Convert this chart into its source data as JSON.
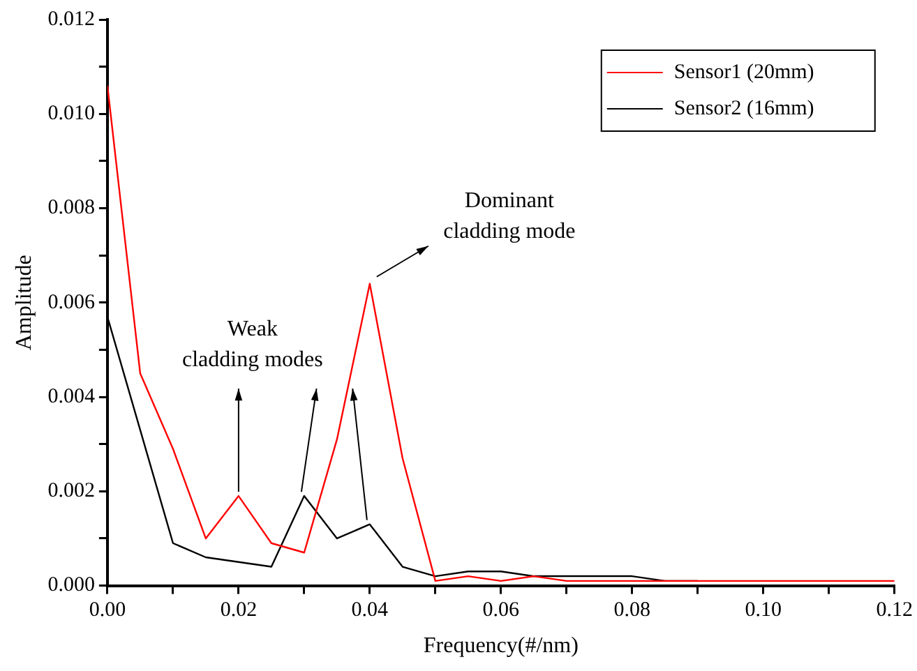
{
  "chart_data": {
    "type": "line",
    "xlabel": "Frequency(#/nm)",
    "ylabel": "Amplitude",
    "x": [
      0,
      0.005,
      0.01,
      0.015,
      0.02,
      0.025,
      0.03,
      0.035,
      0.04,
      0.045,
      0.05,
      0.055,
      0.06,
      0.065,
      0.07,
      0.075,
      0.08,
      0.085,
      0.09,
      0.095,
      0.1,
      0.105,
      0.11,
      0.115,
      0.12
    ],
    "series": [
      {
        "name": "Sensor1 (20mm)",
        "color": "#ff0000",
        "values": [
          0.0106,
          0.0045,
          0.0029,
          0.001,
          0.0019,
          0.0009,
          0.0007,
          0.0031,
          0.0064,
          0.0027,
          0.0001,
          0.0002,
          0.0001,
          0.0002,
          0.0001,
          0.0001,
          0.0001,
          0.0001,
          0.0001,
          0.0001,
          0.0001,
          0.0001,
          0.0001,
          0.0001,
          0.0001
        ]
      },
      {
        "name": "Sensor2 (16mm)",
        "color": "#000000",
        "values": [
          0.0057,
          0.0033,
          0.0009,
          0.0006,
          0.0005,
          0.0004,
          0.0019,
          0.001,
          0.0013,
          0.0004,
          0.0002,
          0.0003,
          0.0003,
          0.0002,
          0.0002,
          0.0002,
          0.0002,
          0.0001,
          0.0001,
          null,
          null,
          null,
          null,
          null,
          null
        ]
      }
    ],
    "xlim": [
      0,
      0.12
    ],
    "xticks": [
      {
        "value": 0,
        "label": "0.00"
      },
      {
        "value": 0.01,
        "label": null
      },
      {
        "value": 0.02,
        "label": "0.02"
      },
      {
        "value": 0.03,
        "label": null
      },
      {
        "value": 0.04,
        "label": "0.04"
      },
      {
        "value": 0.05,
        "label": null
      },
      {
        "value": 0.06,
        "label": "0.06"
      },
      {
        "value": 0.07,
        "label": null
      },
      {
        "value": 0.08,
        "label": "0.08"
      },
      {
        "value": 0.09,
        "label": null
      },
      {
        "value": 0.1,
        "label": "0.10"
      },
      {
        "value": 0.11,
        "label": null
      },
      {
        "value": 0.12,
        "label": "0.12"
      }
    ],
    "ylim": [
      0,
      0.012
    ],
    "yticks": [
      {
        "value": 0,
        "label": "0.000"
      },
      {
        "value": 0.001,
        "label": null
      },
      {
        "value": 0.002,
        "label": "0.002"
      },
      {
        "value": 0.003,
        "label": null
      },
      {
        "value": 0.004,
        "label": "0.004"
      },
      {
        "value": 0.005,
        "label": null
      },
      {
        "value": 0.006,
        "label": "0.006"
      },
      {
        "value": 0.007,
        "label": null
      },
      {
        "value": 0.008,
        "label": "0.008"
      },
      {
        "value": 0.009,
        "label": null
      },
      {
        "value": 0.01,
        "label": "0.010"
      },
      {
        "value": 0.011,
        "label": null
      },
      {
        "value": 0.012,
        "label": "0.012"
      }
    ],
    "annotations": [
      {
        "text": "Dominant cladding mode",
        "x": 0.04,
        "y": 0.0064
      },
      {
        "text": "Weak cladding modes",
        "x": 0.02,
        "y": 0.0019
      }
    ],
    "grid": false,
    "legend": "top right",
    "marker": "none",
    "line_style": "solid"
  }
}
